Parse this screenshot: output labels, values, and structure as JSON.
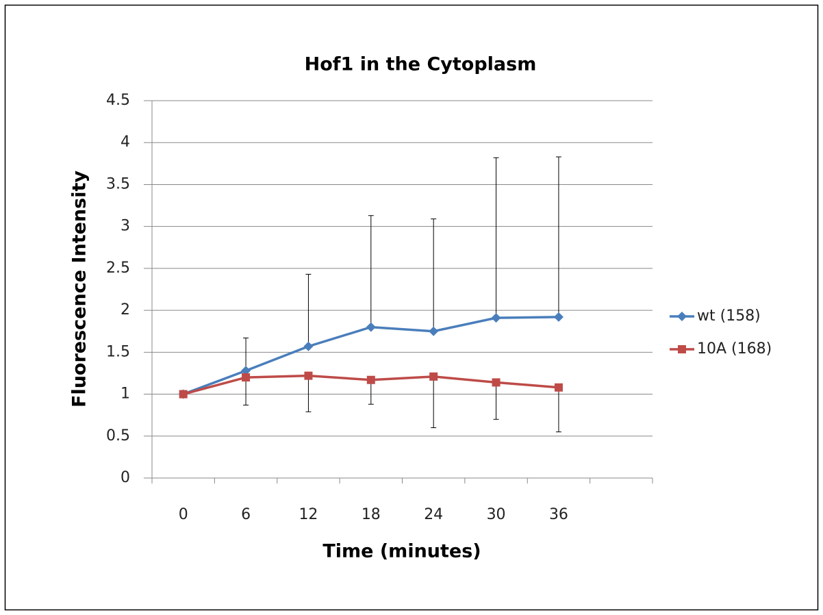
{
  "chart_data": {
    "type": "line",
    "title": "Hof1 in the Cytoplasm",
    "x_label": "Time (minutes)",
    "y_label": "Fluorescence Intensity",
    "categories": [
      "0",
      "6",
      "12",
      "18",
      "24",
      "30",
      "36",
      null
    ],
    "series": [
      {
        "name": "wt (158)",
        "color": "#4a7ebb",
        "marker": "diamond",
        "values": [
          1,
          1.28,
          1.57,
          1.8,
          1.75,
          1.91,
          1.92,
          null
        ],
        "error_plus": [
          0,
          0.39,
          0.86,
          1.33,
          1.34,
          1.91,
          1.91,
          null
        ]
      },
      {
        "name": "10A (168)",
        "color": "#be4b48",
        "marker": "square",
        "values": [
          1,
          1.2,
          1.22,
          1.17,
          1.21,
          1.14,
          1.08,
          null
        ],
        "error_minus": [
          0,
          0.33,
          0.43,
          0.29,
          0.61,
          0.44,
          0.53,
          null
        ]
      }
    ],
    "ylim": [
      0,
      4.5
    ],
    "yticks": [
      0,
      0.5,
      1,
      1.5,
      2,
      2.5,
      3,
      3.5,
      4,
      4.5
    ],
    "grid": true,
    "legend": "right"
  }
}
